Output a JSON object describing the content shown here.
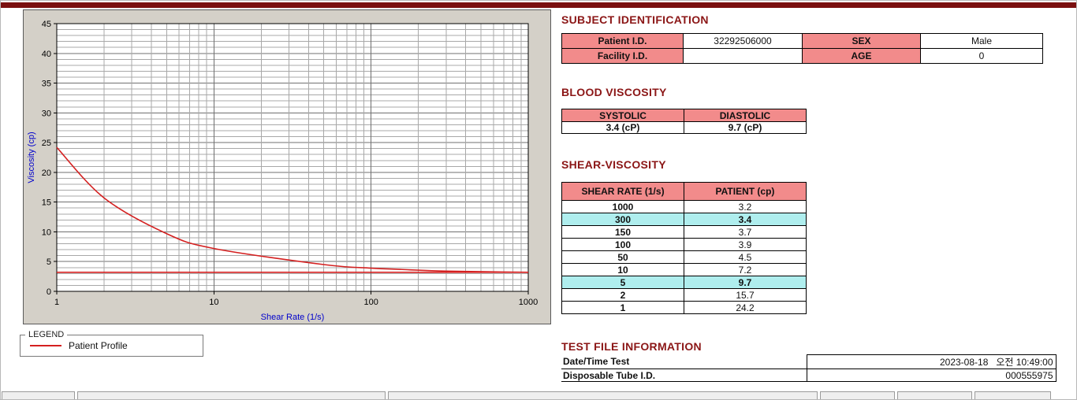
{
  "chart_data": {
    "type": "line",
    "x_scale": "log",
    "xlabel": "Shear Rate (1/s)",
    "ylabel": "Viscosity (cp)",
    "xlim": [
      1,
      1000
    ],
    "ylim": [
      0,
      45
    ],
    "x_ticks": [
      1,
      10,
      100,
      1000
    ],
    "y_ticks": [
      0,
      5,
      10,
      15,
      20,
      25,
      30,
      35,
      40,
      45
    ],
    "grid": true,
    "series": [
      {
        "name": "Patient Profile",
        "color": "#d42020",
        "x": [
          1,
          2,
          5,
          10,
          50,
          100,
          150,
          300,
          1000
        ],
        "y": [
          24.2,
          15.7,
          9.7,
          7.2,
          4.5,
          3.9,
          3.7,
          3.4,
          3.2
        ]
      },
      {
        "name": "reference-line",
        "color": "#d42020",
        "x": [
          1,
          1000
        ],
        "y": [
          3.2,
          3.2
        ]
      }
    ]
  },
  "legend": {
    "title": "LEGEND",
    "series_label": "Patient Profile"
  },
  "subject": {
    "title": "SUBJECT IDENTIFICATION",
    "patient_id_label": "Patient I.D.",
    "patient_id": "32292506000",
    "sex_label": "SEX",
    "sex": "Male",
    "facility_id_label": "Facility I.D.",
    "facility_id": "",
    "age_label": "AGE",
    "age": "0"
  },
  "blood_viscosity": {
    "title": "BLOOD VISCOSITY",
    "headers": [
      "SYSTOLIC",
      "DIASTOLIC"
    ],
    "values": [
      "3.4 (cP)",
      "9.7 (cP)"
    ]
  },
  "shear_viscosity": {
    "title": "SHEAR-VISCOSITY",
    "headers": [
      "SHEAR RATE (1/s)",
      "PATIENT (cp)"
    ],
    "rows": [
      {
        "rate": "1000",
        "value": "3.2",
        "highlight": false
      },
      {
        "rate": "300",
        "value": "3.4",
        "highlight": true
      },
      {
        "rate": "150",
        "value": "3.7",
        "highlight": false
      },
      {
        "rate": "100",
        "value": "3.9",
        "highlight": false
      },
      {
        "rate": "50",
        "value": "4.5",
        "highlight": false
      },
      {
        "rate": "10",
        "value": "7.2",
        "highlight": false
      },
      {
        "rate": "5",
        "value": "9.7",
        "highlight": true
      },
      {
        "rate": "2",
        "value": "15.7",
        "highlight": false
      },
      {
        "rate": "1",
        "value": "24.2",
        "highlight": false
      }
    ]
  },
  "test_file": {
    "title": "TEST FILE INFORMATION",
    "rows": [
      {
        "label": "Date/Time Test",
        "value": "2023-08-18   오전 10:49:00"
      },
      {
        "label": "Disposable Tube I.D.",
        "value": "000555975"
      }
    ]
  },
  "colors": {
    "header_pink": "#f28b8b",
    "highlight_cyan": "#afeeee",
    "section_title_red": "#8b1616",
    "curve_red": "#d42020",
    "top_bar_maroon": "#7a0f0f",
    "axis_label_blue": "#0000cc"
  }
}
